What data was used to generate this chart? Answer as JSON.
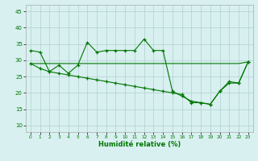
{
  "line1_x": [
    0,
    1,
    2,
    3,
    4,
    5,
    6,
    7,
    8,
    9,
    10,
    11,
    12,
    13,
    14,
    15,
    16,
    17,
    18,
    19,
    20,
    21,
    22,
    23
  ],
  "line1_y": [
    33,
    32.5,
    26.5,
    28.5,
    26,
    28.5,
    35.5,
    32.5,
    33,
    33,
    33,
    33,
    36.5,
    33,
    33,
    20.5,
    19,
    17.5,
    17,
    16.5,
    20.5,
    23.5,
    23,
    29.5
  ],
  "line2_x": [
    0,
    1,
    2,
    3,
    4,
    5,
    6,
    7,
    8,
    9,
    10,
    11,
    12,
    13,
    14,
    15,
    16,
    17,
    18,
    19,
    20,
    21,
    22,
    23
  ],
  "line2_y": [
    29,
    29,
    29,
    29,
    29,
    29,
    29,
    29,
    29,
    29,
    29,
    29,
    29,
    29,
    29,
    29,
    29,
    29,
    29,
    29,
    29,
    29,
    29,
    29.5
  ],
  "line3_x": [
    0,
    1,
    2,
    3,
    4,
    5,
    6,
    7,
    8,
    9,
    10,
    11,
    12,
    13,
    14,
    15,
    16,
    17,
    18,
    19,
    20,
    21,
    22,
    23
  ],
  "line3_y": [
    29,
    27.5,
    26.5,
    26,
    25.5,
    25,
    24.5,
    24,
    23.5,
    23,
    22.5,
    22,
    21.5,
    21,
    20.5,
    20,
    19.5,
    17,
    17,
    16.5,
    20.5,
    23,
    23,
    29.5
  ],
  "line_color": "#007700",
  "bg_color": "#d8f0f0",
  "grid_color": "#b0d0d0",
  "xlabel": "Humidité relative (%)",
  "xlim": [
    -0.5,
    23.5
  ],
  "ylim": [
    8,
    47
  ],
  "yticks": [
    10,
    15,
    20,
    25,
    30,
    35,
    40,
    45
  ],
  "xticks": [
    0,
    1,
    2,
    3,
    4,
    5,
    6,
    7,
    8,
    9,
    10,
    11,
    12,
    13,
    14,
    15,
    16,
    17,
    18,
    19,
    20,
    21,
    22,
    23
  ]
}
